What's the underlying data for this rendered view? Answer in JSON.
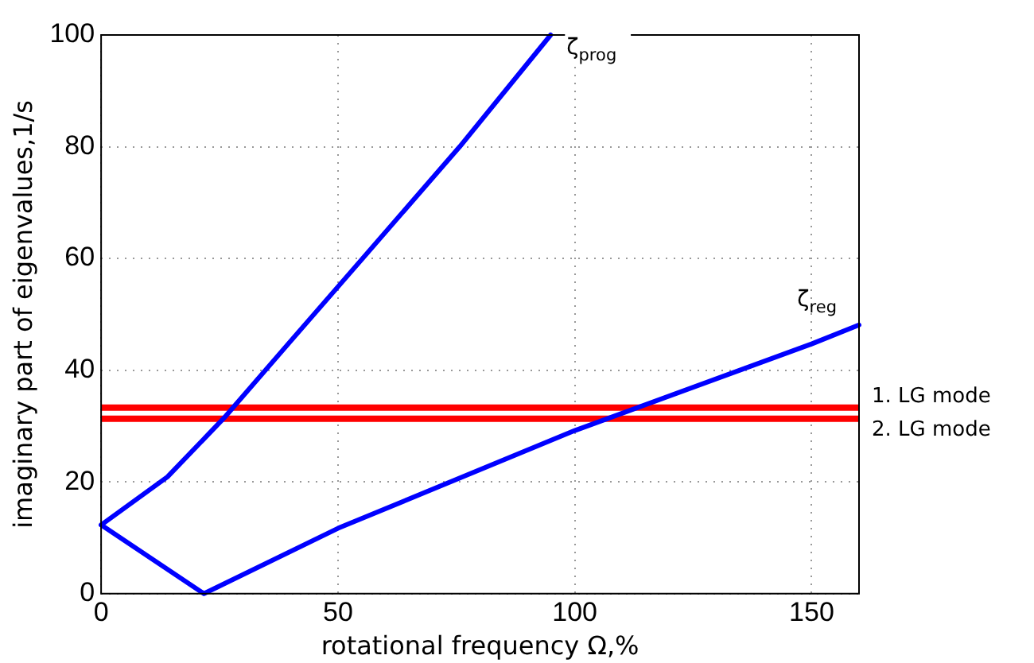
{
  "chart_data": {
    "type": "line",
    "xlabel": "rotational frequency Ω,%",
    "ylabel": "imaginary part of eigenvalues,1/s",
    "xlim": [
      0,
      160
    ],
    "xticks": [
      0,
      50,
      100,
      150
    ],
    "ylim": [
      0,
      100
    ],
    "yticks": [
      0,
      20,
      40,
      60,
      80,
      100
    ],
    "grid": true,
    "legend": false,
    "marker": "none",
    "series": [
      {
        "name": "ζ$_{prog}$",
        "color": "#0000ff",
        "x": [
          0,
          14,
          26,
          40,
          55.2,
          75.7,
          94.9
        ],
        "values": [
          12.3,
          20.9,
          31.5,
          45.2,
          60,
          80,
          100
        ]
      },
      {
        "name": "ζ$_{reg}$",
        "color": "#0000ff",
        "x": [
          0,
          21.7,
          50,
          100,
          150,
          160
        ],
        "values": [
          12.3,
          0,
          11.7,
          29.2,
          44.7,
          48.1
        ]
      }
    ],
    "ref_lines": [
      {
        "axis": "y",
        "value": 33.3,
        "label": "1. LG mode",
        "color": "#ff0000"
      },
      {
        "axis": "y",
        "value": 31.3,
        "label": "2. LG mode",
        "color": "#ff0000"
      }
    ]
  }
}
